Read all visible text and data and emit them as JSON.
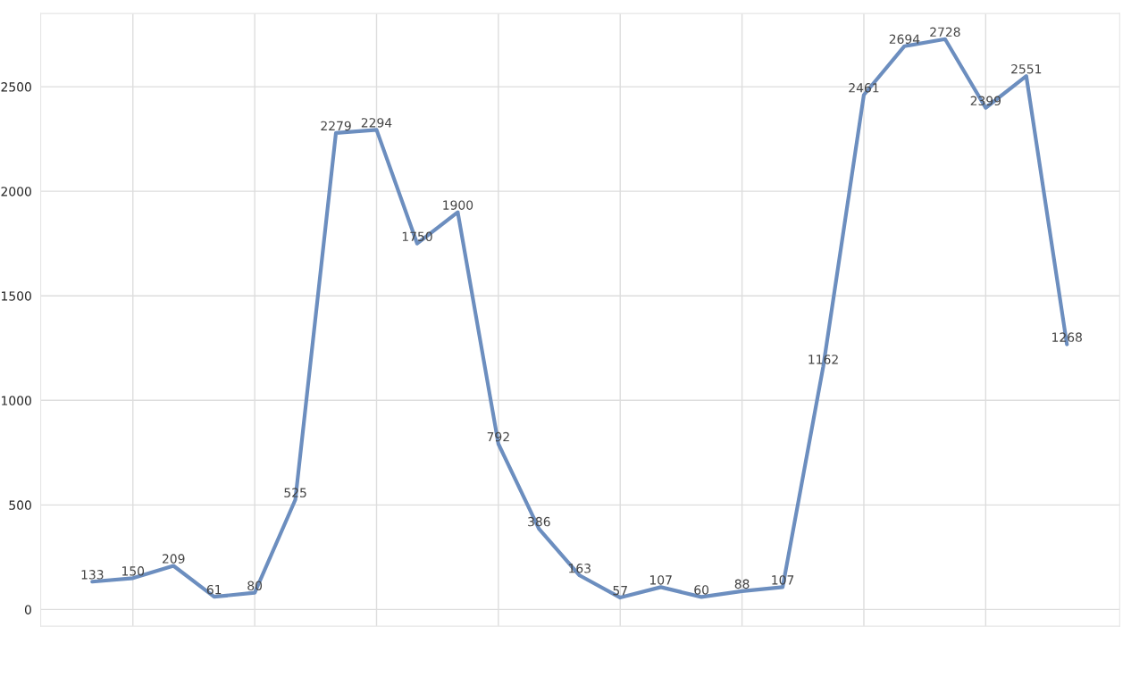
{
  "chart_data": {
    "type": "line",
    "categories": [
      null,
      null,
      null,
      null,
      null,
      null,
      null,
      null,
      null,
      null,
      null,
      null,
      null,
      null,
      null,
      null,
      null,
      null,
      null,
      null,
      null,
      null,
      null,
      null,
      null
    ],
    "series": [
      {
        "color": "#6c8ebf",
        "values": [
          133,
          150,
          209,
          61,
          80,
          525,
          2279,
          2294,
          1750,
          1900,
          792,
          386,
          163,
          57,
          107,
          60,
          88,
          107,
          1162,
          2461,
          2694,
          2728,
          2399,
          2551,
          1268
        ]
      }
    ],
    "ylim": [
      -80,
      2850
    ],
    "yticks": [
      0,
      500,
      1000,
      1500,
      2000,
      2500
    ],
    "data_labels": true,
    "grid": true,
    "marker": "none",
    "line_style": "solid"
  }
}
